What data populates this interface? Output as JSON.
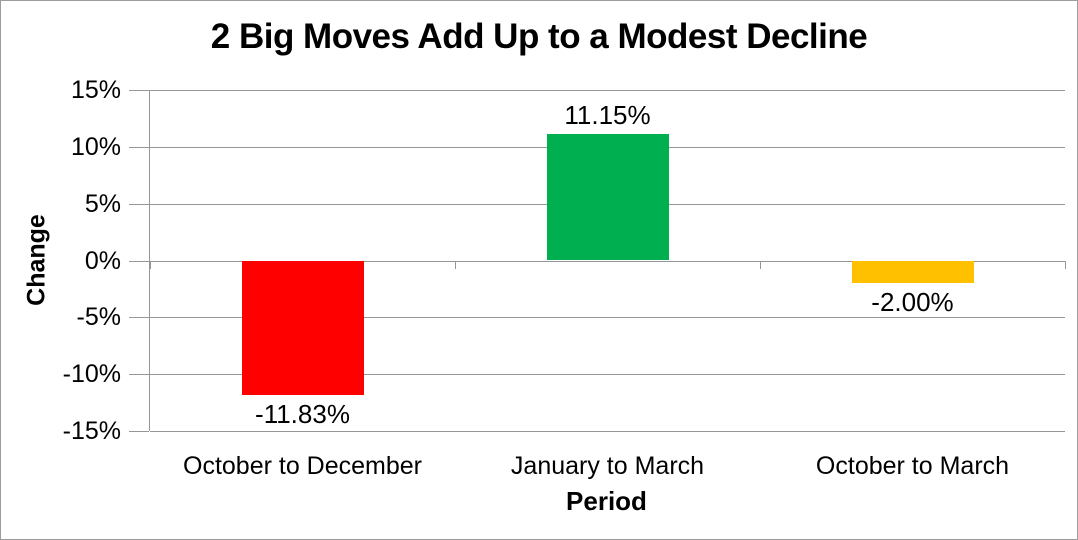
{
  "chart_data": {
    "type": "bar",
    "title": "2 Big Moves Add Up to a Modest Decline",
    "xlabel": "Period",
    "ylabel": "Change",
    "categories": [
      "October to December",
      "January to March",
      "October to March"
    ],
    "values": [
      -11.83,
      11.15,
      -2.0
    ],
    "value_labels": [
      "-11.83%",
      "11.15%",
      "-2.00%"
    ],
    "bar_colors": [
      "#FF0000",
      "#00B050",
      "#FFC000"
    ],
    "ylim": [
      -15,
      15
    ],
    "yticks": [
      {
        "value": 15,
        "label": "15%"
      },
      {
        "value": 10,
        "label": "10%"
      },
      {
        "value": 5,
        "label": "5%"
      },
      {
        "value": 0,
        "label": "0%"
      },
      {
        "value": -5,
        "label": "-5%"
      },
      {
        "value": -10,
        "label": "-10%"
      },
      {
        "value": -15,
        "label": "-15%"
      }
    ],
    "grid": true,
    "legend": "none",
    "colors": {
      "grid_axis": "#969696",
      "chart_border": "#9C9C9C",
      "text": "#000000",
      "background": "#FFFFFF"
    }
  }
}
